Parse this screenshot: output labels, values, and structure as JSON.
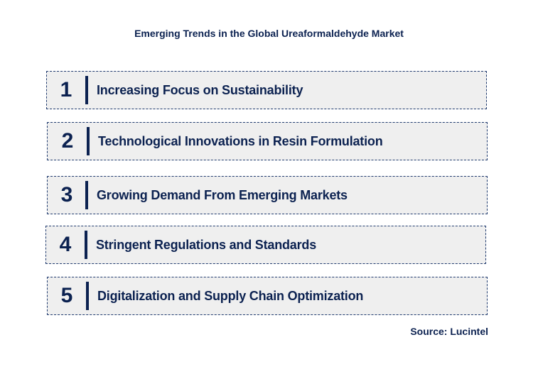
{
  "title": "Emerging Trends in the Global Ureaformaldehyde Market",
  "trends": [
    {
      "number": "1",
      "label": "Increasing Focus on Sustainability"
    },
    {
      "number": "2",
      "label": "Technological Innovations in Resin Formulation"
    },
    {
      "number": "3",
      "label": "Growing Demand From Emerging Markets"
    },
    {
      "number": "4",
      "label": "Stringent Regulations and Standards"
    },
    {
      "number": "5",
      "label": "Digitalization and Supply Chain Optimization"
    }
  ],
  "source": "Source: Lucintel",
  "colors": {
    "text": "#0b2150",
    "box_background": "#efefef",
    "box_border": "#1f3a6e"
  }
}
